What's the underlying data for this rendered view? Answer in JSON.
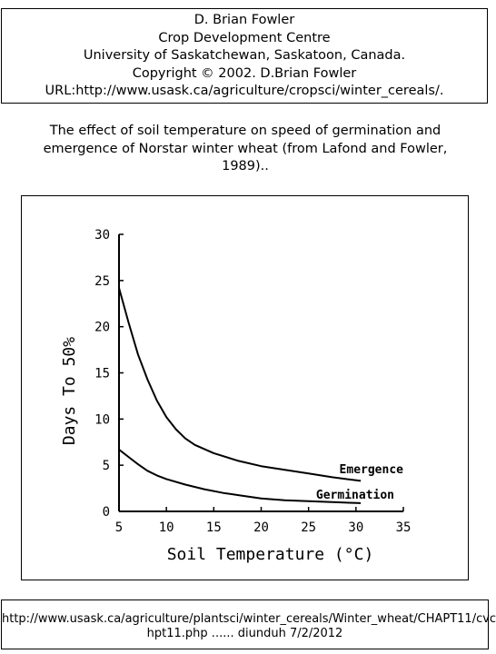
{
  "header": {
    "lines": [
      "D. Brian Fowler",
      "Crop Development Centre",
      "University of Saskatchewan, Saskatoon, Canada.",
      "Copyright © 2002. D.Brian Fowler",
      "URL:http://www.usask.ca/agriculture/cropsci/winter_cereals/."
    ]
  },
  "caption": {
    "line1": "The effect of soil temperature on speed of germination and",
    "line2": "emergence of Norstar winter wheat (from Lafond and Fowler,",
    "line3": "1989).."
  },
  "chart_data": {
    "type": "line",
    "xlabel": "Soil Temperature (°C)",
    "ylabel": "Days To 50%",
    "xlim": [
      5,
      35
    ],
    "ylim": [
      0,
      30
    ],
    "xticks": [
      5,
      10,
      15,
      20,
      25,
      30,
      35
    ],
    "yticks": [
      0,
      5,
      10,
      15,
      20,
      25,
      30
    ],
    "grid": false,
    "series": [
      {
        "name": "Emergence",
        "x": [
          5,
          6,
          7,
          8,
          9,
          10,
          11,
          12,
          13,
          15,
          17.5,
          20,
          22.5,
          25,
          27.5,
          30.5
        ],
        "y": [
          24.2,
          20.5,
          17.0,
          14.3,
          12.0,
          10.2,
          8.9,
          7.9,
          7.2,
          6.3,
          5.5,
          4.9,
          4.5,
          4.1,
          3.7,
          3.3
        ]
      },
      {
        "name": "Germination",
        "x": [
          5,
          6,
          7,
          8,
          9,
          10,
          12,
          14,
          16,
          18,
          20,
          22.5,
          25,
          27.5,
          30.5
        ],
        "y": [
          6.7,
          5.9,
          5.1,
          4.4,
          3.9,
          3.5,
          2.9,
          2.4,
          2.0,
          1.7,
          1.4,
          1.2,
          1.1,
          1.0,
          0.9
        ]
      }
    ]
  },
  "footer": {
    "line1": "http://www.usask.ca/agriculture/plantsci/winter_cereals/Winter_wheat/CHAPT11/cvc",
    "line2": "hpt11.php ......    diunduh 7/2/2012"
  }
}
